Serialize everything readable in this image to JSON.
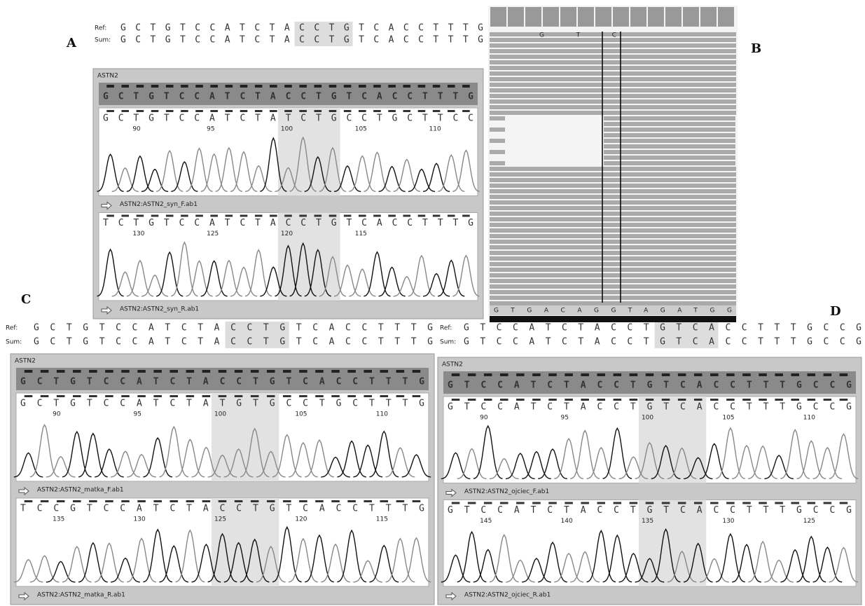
{
  "panels": [
    {
      "label": "A",
      "ref_label": "Ref:",
      "ref": "GCTGTCCATCTACCTGTCACCTTTG",
      "sum_label": "Sum:",
      "sum": "GCTGTCCATCTACCTGTCACCTTTG",
      "gene": "ASTN2",
      "consensus": "GCTGTCCATCTACCTGTCACCTTTG",
      "traces": [
        {
          "sequence": "GCTGTCCATCTATCTGCCTGCTTCC",
          "positions": [
            90,
            95,
            100,
            105,
            110
          ],
          "file": "ASTN2:ASTN2_syn_F.ab1"
        },
        {
          "sequence": "TCTGTCCATCTACCTGTCACCTTTG",
          "positions": [
            130,
            125,
            120,
            115
          ],
          "file": "ASTN2:ASTN2_syn_R.ab1"
        }
      ]
    },
    {
      "label": "C",
      "ref_label": "Ref:",
      "ref": "GCTGTCCATCTACCTGTCACCTTTG",
      "sum_label": "Sum:",
      "sum": "GCTGTCCATCTACCTGTCACCTTTG",
      "gene": "ASTN2",
      "consensus": "GCTGTCCATCTACCTGTCACCTTTG",
      "traces": [
        {
          "sequence": "GCTGTCCATCTATGTGCCTGCTTTG",
          "positions": [
            90,
            95,
            100,
            105,
            110
          ],
          "file": "ASTN2:ASTN2_matka_F.ab1"
        },
        {
          "sequence": "TCCGTCCATCTACCTGTCACCTTTG",
          "positions": [
            135,
            130,
            125,
            120,
            115
          ],
          "file": "ASTN2:ASTN2_matka_R.ab1"
        }
      ]
    },
    {
      "label": "D",
      "ref_label": "Ref:",
      "ref": "GTCCATCTACCTGTCACCTTTGCCG",
      "sum_label": "Sum:",
      "sum": "GTCCATCTACCTGTCACCTTTGCCG",
      "gene": "ASTN2",
      "consensus": "GTCCATCTACCTGTCACCTTTGCCG",
      "traces": [
        {
          "sequence": "GTCCATCTACCTGTCACCTTTGCCG",
          "positions": [
            90,
            95,
            100,
            105,
            110
          ],
          "file": "ASTN2:ASTN2_ojciec_F.ab1"
        },
        {
          "sequence": "GTCCATCTACCTGTCACCTTTGCCG",
          "positions": [
            145,
            140,
            135,
            130,
            125
          ],
          "file": "ASTN2:ASTN2_ojciec_R.ab1"
        }
      ]
    }
  ],
  "panel_b": {
    "label": "B",
    "top_sequence": "GTC",
    "bottom_sequence": "GTGACAGGTAGATGG"
  }
}
